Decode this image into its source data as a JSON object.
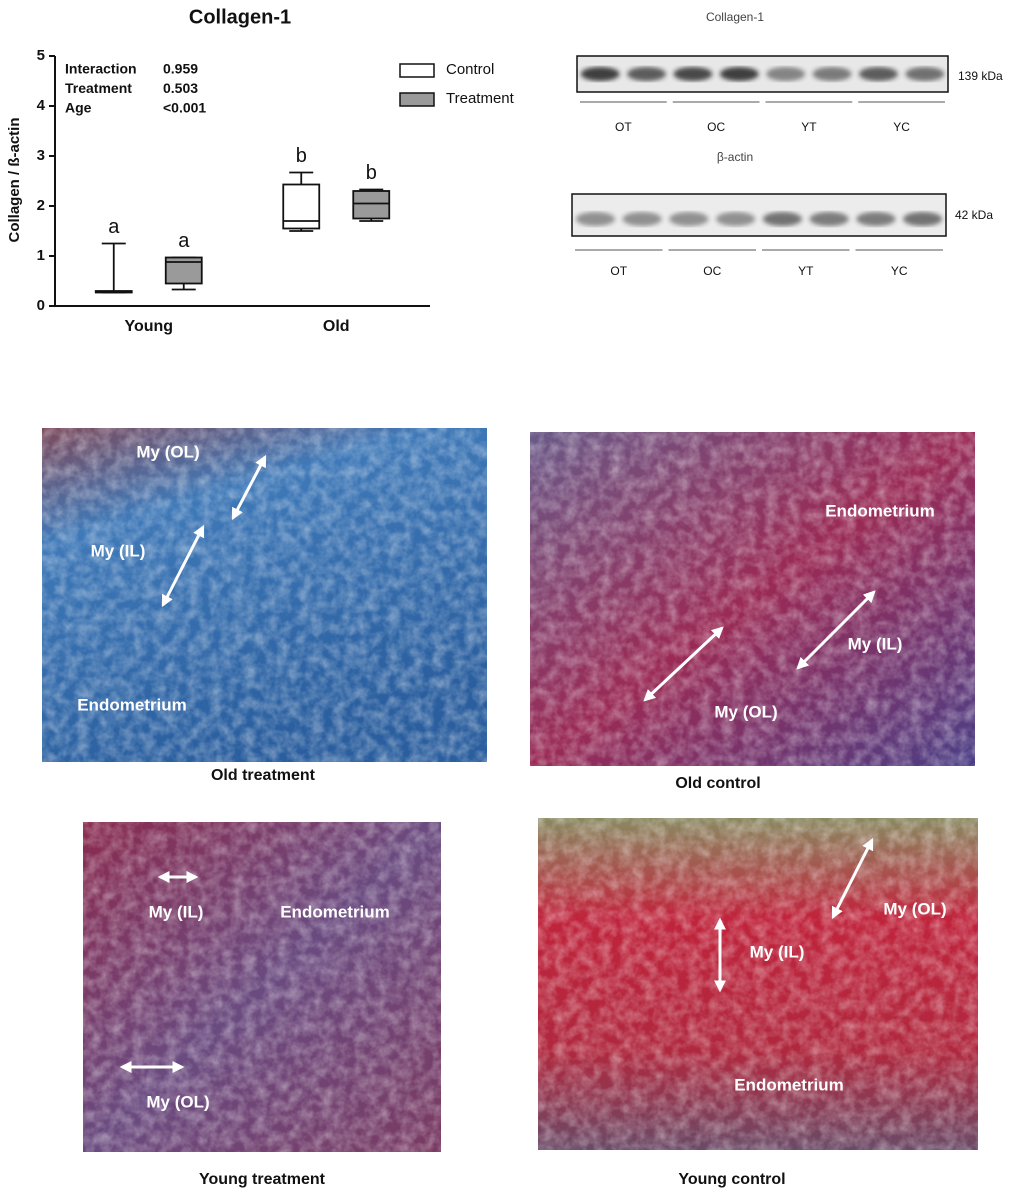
{
  "chart_data": {
    "type": "box",
    "title": "Collagen-1",
    "y_label": "Collagen / ß-actin",
    "categories": [
      "Young",
      "Old"
    ],
    "ylim": [
      0,
      5
    ],
    "yticks": [
      0,
      1,
      2,
      3,
      4,
      5
    ],
    "legend": "top-right",
    "stats": [
      {
        "label": "Interaction",
        "value": "0.959"
      },
      {
        "label": "Treatment",
        "value": "0.503"
      },
      {
        "label": "Age",
        "value": "<0.001"
      }
    ],
    "series": [
      {
        "name": "Control",
        "color": "#ffffff",
        "min": [
          0.27,
          1.5
        ],
        "q1": [
          0.27,
          1.55
        ],
        "median": [
          0.28,
          1.7
        ],
        "q3": [
          0.3,
          2.43
        ],
        "max": [
          1.25,
          2.67
        ],
        "group_labels": [
          "a",
          "b"
        ]
      },
      {
        "name": "Treatment",
        "color": "#9a9a9a",
        "min": [
          0.33,
          1.7
        ],
        "q1": [
          0.45,
          1.75
        ],
        "median": [
          0.88,
          2.05
        ],
        "q3": [
          0.97,
          2.3
        ],
        "max": [
          0.97,
          2.33
        ],
        "group_labels": [
          "a",
          "b"
        ]
      }
    ]
  },
  "blots": [
    {
      "title": "Collagen-1",
      "size": "139 kDa",
      "lanes": [
        "OT",
        "OC",
        "YT",
        "YC"
      ]
    },
    {
      "title": "β-actin",
      "size": "42 kDa",
      "lanes": [
        "OT",
        "OC",
        "YT",
        "YC"
      ]
    }
  ],
  "panels": [
    {
      "caption": "Old treatment",
      "labels": [
        "My (OL)",
        "My (IL)",
        "Endometrium"
      ]
    },
    {
      "caption": "Old control",
      "labels": [
        "Endometrium",
        "My (IL)",
        "My (OL)"
      ]
    },
    {
      "caption": "Young treatment",
      "labels": [
        "My (IL)",
        "Endometrium",
        "My (OL)"
      ]
    },
    {
      "caption": "Young control",
      "labels": [
        "My (OL)",
        "My (IL)",
        "Endometrium"
      ]
    }
  ]
}
